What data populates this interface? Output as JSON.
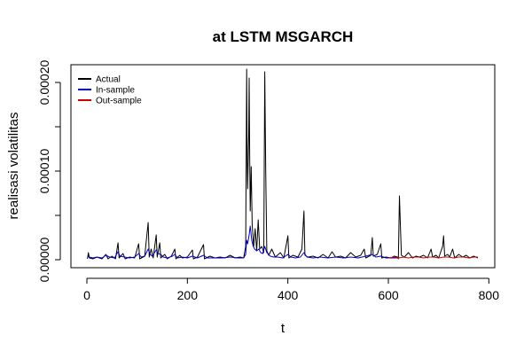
{
  "chart_data": {
    "type": "line",
    "title": "at LSTM MSGARCH",
    "xlabel": "t",
    "ylabel": "realisasi volatilitas",
    "xlim": [
      0,
      780
    ],
    "ylim": [
      0,
      0.00021
    ],
    "x_ticks": [
      0,
      200,
      400,
      600,
      800
    ],
    "x_tick_labels": [
      "0",
      "200",
      "400",
      "600",
      "800"
    ],
    "y_ticks": [
      0,
      5e-05,
      0.0001,
      0.00015,
      0.0002
    ],
    "y_tick_labels": [
      "0.00000",
      "",
      "0.00010",
      "",
      "0.00020"
    ],
    "grid": false,
    "legend_position": "top-left",
    "series": [
      {
        "name": "Actual",
        "color": "#000000",
        "points": [
          [
            1,
            1e-06
          ],
          [
            3,
            8e-06
          ],
          [
            5,
            2e-06
          ],
          [
            12,
            1e-06
          ],
          [
            20,
            3e-06
          ],
          [
            30,
            1e-06
          ],
          [
            38,
            6e-06
          ],
          [
            42,
            1e-06
          ],
          [
            50,
            4e-06
          ],
          [
            57,
            1e-06
          ],
          [
            62,
            1.9e-05
          ],
          [
            64,
            2e-06
          ],
          [
            72,
            7e-06
          ],
          [
            76,
            1e-06
          ],
          [
            85,
            3e-06
          ],
          [
            95,
            2e-06
          ],
          [
            103,
            1.8e-05
          ],
          [
            105,
            1e-06
          ],
          [
            115,
            4e-06
          ],
          [
            122,
            4.2e-05
          ],
          [
            124,
            3e-06
          ],
          [
            128,
            1.2e-05
          ],
          [
            132,
            2e-06
          ],
          [
            138,
            2.8e-05
          ],
          [
            140,
            3e-06
          ],
          [
            145,
            1.9e-05
          ],
          [
            147,
            2e-06
          ],
          [
            155,
            6e-06
          ],
          [
            160,
            1e-06
          ],
          [
            168,
            4e-06
          ],
          [
            175,
            1.2e-05
          ],
          [
            177,
            1e-06
          ],
          [
            185,
            5e-06
          ],
          [
            190,
            2e-06
          ],
          [
            200,
            3e-06
          ],
          [
            210,
            1.1e-05
          ],
          [
            212,
            1e-06
          ],
          [
            220,
            3e-06
          ],
          [
            232,
            1.7e-05
          ],
          [
            234,
            1e-06
          ],
          [
            245,
            4e-06
          ],
          [
            255,
            2e-06
          ],
          [
            265,
            3e-06
          ],
          [
            275,
            2e-06
          ],
          [
            285,
            5e-06
          ],
          [
            295,
            2e-06
          ],
          [
            305,
            3e-06
          ],
          [
            312,
            2e-06
          ],
          [
            316,
            1.5e-05
          ],
          [
            318,
            0.000215
          ],
          [
            319,
            0.00011
          ],
          [
            320,
            8e-05
          ],
          [
            322,
            0.00014
          ],
          [
            323,
            0.000205
          ],
          [
            324,
            0.00012
          ],
          [
            325,
            5.5e-05
          ],
          [
            327,
            0.000105
          ],
          [
            329,
            4e-05
          ],
          [
            332,
            1.5e-05
          ],
          [
            335,
            3.5e-05
          ],
          [
            338,
            1e-05
          ],
          [
            341,
            4.5e-05
          ],
          [
            344,
            1.2e-05
          ],
          [
            348,
            1.5e-05
          ],
          [
            352,
            8e-06
          ],
          [
            354,
            0.000212
          ],
          [
            356,
            0.0001
          ],
          [
            358,
            1e-05
          ],
          [
            362,
            5e-06
          ],
          [
            368,
            1.2e-05
          ],
          [
            375,
            3e-06
          ],
          [
            385,
            8e-06
          ],
          [
            392,
            2e-06
          ],
          [
            400,
            2.7e-05
          ],
          [
            402,
            2e-06
          ],
          [
            410,
            5e-06
          ],
          [
            420,
            3e-06
          ],
          [
            428,
            1.2e-05
          ],
          [
            432,
            5.5e-05
          ],
          [
            434,
            5e-06
          ],
          [
            440,
            3e-06
          ],
          [
            450,
            4e-06
          ],
          [
            460,
            2e-06
          ],
          [
            470,
            6e-06
          ],
          [
            480,
            2e-06
          ],
          [
            488,
            9e-06
          ],
          [
            495,
            3e-06
          ],
          [
            505,
            4e-06
          ],
          [
            515,
            2e-06
          ],
          [
            525,
            8e-06
          ],
          [
            535,
            3e-06
          ],
          [
            545,
            5e-06
          ],
          [
            552,
            1.2e-05
          ],
          [
            555,
            2e-06
          ],
          [
            565,
            5e-06
          ],
          [
            568,
            2.5e-05
          ],
          [
            570,
            4e-06
          ],
          [
            578,
            6e-06
          ],
          [
            585,
            1.8e-05
          ],
          [
            587,
            2e-06
          ],
          [
            595,
            3e-06
          ],
          [
            605,
            2e-06
          ],
          [
            612,
            4e-06
          ],
          [
            618,
            3e-06
          ],
          [
            620,
            1e-06
          ],
          [
            622,
            7.2e-05
          ],
          [
            624,
            3.8e-05
          ],
          [
            626,
            5e-06
          ],
          [
            632,
            3e-06
          ],
          [
            640,
            8e-06
          ],
          [
            648,
            2e-06
          ],
          [
            655,
            4e-06
          ],
          [
            662,
            3e-06
          ],
          [
            670,
            5e-06
          ],
          [
            678,
            2e-06
          ],
          [
            685,
            1.2e-05
          ],
          [
            688,
            3e-06
          ],
          [
            695,
            5e-06
          ],
          [
            700,
            2e-06
          ],
          [
            708,
            1.5e-05
          ],
          [
            710,
            2.7e-05
          ],
          [
            712,
            4e-06
          ],
          [
            718,
            6e-06
          ],
          [
            722,
            3e-06
          ],
          [
            728,
            1.2e-05
          ],
          [
            732,
            2e-06
          ],
          [
            740,
            6e-06
          ],
          [
            748,
            3e-06
          ],
          [
            755,
            5e-06
          ],
          [
            762,
            2e-06
          ],
          [
            770,
            4e-06
          ],
          [
            778,
            2e-06
          ]
        ]
      },
      {
        "name": "In-sample",
        "color": "#0000cc",
        "points": [
          [
            1,
            4e-06
          ],
          [
            5,
            3e-06
          ],
          [
            12,
            2e-06
          ],
          [
            20,
            3e-06
          ],
          [
            30,
            2e-06
          ],
          [
            38,
            5e-06
          ],
          [
            45,
            3e-06
          ],
          [
            55,
            2e-06
          ],
          [
            62,
            9e-06
          ],
          [
            66,
            4e-06
          ],
          [
            75,
            3e-06
          ],
          [
            85,
            2e-06
          ],
          [
            95,
            3e-06
          ],
          [
            103,
            7e-06
          ],
          [
            108,
            3e-06
          ],
          [
            115,
            4e-06
          ],
          [
            122,
            1.2e-05
          ],
          [
            126,
            6e-06
          ],
          [
            130,
            4e-06
          ],
          [
            138,
            1.1e-05
          ],
          [
            142,
            7e-06
          ],
          [
            147,
            6e-06
          ],
          [
            152,
            3e-06
          ],
          [
            160,
            2e-06
          ],
          [
            170,
            4e-06
          ],
          [
            175,
            6e-06
          ],
          [
            180,
            2e-06
          ],
          [
            190,
            3e-06
          ],
          [
            200,
            2e-06
          ],
          [
            210,
            4e-06
          ],
          [
            220,
            2e-06
          ],
          [
            232,
            5e-06
          ],
          [
            240,
            2e-06
          ],
          [
            255,
            2e-06
          ],
          [
            270,
            2e-06
          ],
          [
            285,
            3e-06
          ],
          [
            300,
            2e-06
          ],
          [
            312,
            2e-06
          ],
          [
            316,
            6e-06
          ],
          [
            318,
            2.2e-05
          ],
          [
            320,
            1.8e-05
          ],
          [
            323,
            2.8e-05
          ],
          [
            325,
            3.8e-05
          ],
          [
            328,
            2.2e-05
          ],
          [
            331,
            1.5e-05
          ],
          [
            334,
            1.2e-05
          ],
          [
            338,
            1e-05
          ],
          [
            342,
            1.2e-05
          ],
          [
            346,
            8e-06
          ],
          [
            350,
            7e-06
          ],
          [
            354,
            1.5e-05
          ],
          [
            358,
            8e-06
          ],
          [
            365,
            4e-06
          ],
          [
            372,
            3e-06
          ],
          [
            380,
            3e-06
          ],
          [
            390,
            2e-06
          ],
          [
            400,
            6e-06
          ],
          [
            406,
            3e-06
          ],
          [
            415,
            2e-06
          ],
          [
            425,
            3e-06
          ],
          [
            432,
            8e-06
          ],
          [
            438,
            3e-06
          ],
          [
            450,
            2e-06
          ],
          [
            465,
            3e-06
          ],
          [
            480,
            2e-06
          ],
          [
            495,
            3e-06
          ],
          [
            510,
            2e-06
          ],
          [
            525,
            3e-06
          ],
          [
            540,
            2e-06
          ],
          [
            555,
            4e-06
          ],
          [
            568,
            6e-06
          ],
          [
            575,
            3e-06
          ],
          [
            585,
            4e-06
          ],
          [
            595,
            2e-06
          ],
          [
            605,
            2e-06
          ],
          [
            618,
            2e-06
          ]
        ]
      },
      {
        "name": "Out-sample",
        "color": "#cc0000",
        "points": [
          [
            600,
            2e-06
          ],
          [
            610,
            3e-06
          ],
          [
            620,
            2e-06
          ],
          [
            630,
            3e-06
          ],
          [
            640,
            2e-06
          ],
          [
            650,
            3e-06
          ],
          [
            660,
            3e-06
          ],
          [
            670,
            2e-06
          ],
          [
            680,
            3e-06
          ],
          [
            690,
            3e-06
          ],
          [
            700,
            2e-06
          ],
          [
            710,
            3e-06
          ],
          [
            720,
            3e-06
          ],
          [
            730,
            2e-06
          ],
          [
            740,
            3e-06
          ],
          [
            750,
            3e-06
          ],
          [
            760,
            2e-06
          ],
          [
            770,
            3e-06
          ],
          [
            778,
            3e-06
          ]
        ]
      }
    ]
  }
}
